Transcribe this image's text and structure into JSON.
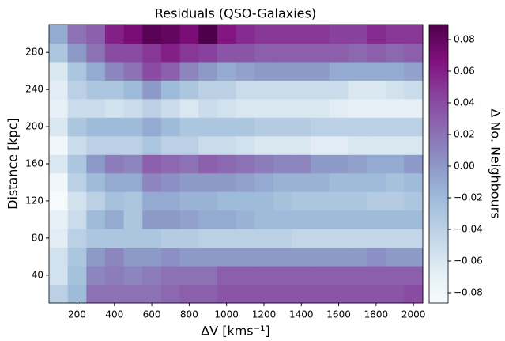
{
  "chart_data": {
    "type": "heatmap",
    "title": "Residuals (QSO-Galaxies)",
    "xlabel": "ΔV [kms⁻¹]",
    "ylabel": "Distance [kpc]",
    "colorbar_label": "Δ No. Neighbours",
    "x": [
      100,
      200,
      300,
      400,
      500,
      600,
      700,
      800,
      900,
      1000,
      1100,
      1200,
      1300,
      1400,
      1500,
      1600,
      1700,
      1800,
      1900,
      2000
    ],
    "y": [
      20,
      40,
      60,
      80,
      100,
      120,
      140,
      160,
      180,
      200,
      220,
      240,
      260,
      280,
      300
    ],
    "values": [
      [
        -0.04,
        -0.02,
        0.02,
        0.02,
        0.02,
        0.02,
        0.025,
        0.03,
        0.03,
        0.035,
        0.035,
        0.035,
        0.035,
        0.035,
        0.035,
        0.035,
        0.035,
        0.035,
        0.035,
        0.04
      ],
      [
        -0.055,
        -0.025,
        0.01,
        0.015,
        0.01,
        0.015,
        0.02,
        0.02,
        0.02,
        0.03,
        0.03,
        0.03,
        0.03,
        0.03,
        0.03,
        0.03,
        0.03,
        0.03,
        0.03,
        0.03
      ],
      [
        -0.055,
        -0.03,
        0.0,
        0.01,
        0.0,
        0.0,
        0.005,
        0.0,
        0.0,
        0.0,
        0.0,
        0.0,
        0.0,
        0.0,
        0.0,
        0.0,
        0.0,
        0.005,
        0.0,
        0.0
      ],
      [
        -0.065,
        -0.04,
        -0.03,
        -0.03,
        -0.03,
        -0.03,
        -0.035,
        -0.035,
        -0.04,
        -0.04,
        -0.04,
        -0.04,
        -0.04,
        -0.045,
        -0.045,
        -0.045,
        -0.045,
        -0.045,
        -0.045,
        -0.045
      ],
      [
        -0.07,
        -0.05,
        -0.02,
        -0.01,
        -0.03,
        0.0,
        0.0,
        -0.005,
        -0.01,
        -0.01,
        -0.015,
        -0.02,
        -0.02,
        -0.02,
        -0.02,
        -0.02,
        -0.02,
        -0.02,
        -0.02,
        -0.02
      ],
      [
        -0.085,
        -0.055,
        -0.04,
        -0.025,
        -0.03,
        -0.01,
        -0.01,
        -0.015,
        -0.015,
        -0.02,
        -0.02,
        -0.02,
        -0.025,
        -0.03,
        -0.03,
        -0.03,
        -0.03,
        -0.035,
        -0.035,
        -0.03
      ],
      [
        -0.08,
        -0.04,
        -0.02,
        -0.01,
        -0.01,
        0.01,
        0.005,
        0.0,
        0.0,
        0.0,
        -0.005,
        -0.01,
        -0.015,
        -0.015,
        -0.015,
        -0.02,
        -0.02,
        -0.02,
        -0.025,
        -0.02
      ],
      [
        -0.06,
        -0.03,
        0.0,
        0.015,
        0.01,
        0.03,
        0.025,
        0.02,
        0.03,
        0.025,
        0.02,
        0.015,
        0.01,
        0.01,
        0.0,
        0.0,
        -0.005,
        -0.01,
        -0.01,
        0.0
      ],
      [
        -0.08,
        -0.05,
        -0.04,
        -0.04,
        -0.04,
        -0.03,
        -0.04,
        -0.04,
        -0.05,
        -0.05,
        -0.055,
        -0.06,
        -0.06,
        -0.06,
        -0.065,
        -0.065,
        -0.06,
        -0.06,
        -0.06,
        -0.06
      ],
      [
        -0.06,
        -0.03,
        -0.02,
        -0.02,
        -0.02,
        -0.01,
        -0.02,
        -0.03,
        -0.03,
        -0.03,
        -0.03,
        -0.035,
        -0.035,
        -0.035,
        -0.04,
        -0.04,
        -0.04,
        -0.04,
        -0.04,
        -0.04
      ],
      [
        -0.07,
        -0.05,
        -0.05,
        -0.055,
        -0.05,
        -0.04,
        -0.05,
        -0.06,
        -0.05,
        -0.055,
        -0.06,
        -0.06,
        -0.06,
        -0.06,
        -0.06,
        -0.065,
        -0.07,
        -0.07,
        -0.07,
        -0.07
      ],
      [
        -0.065,
        -0.04,
        -0.03,
        -0.03,
        -0.02,
        0.0,
        -0.02,
        -0.03,
        -0.04,
        -0.04,
        -0.05,
        -0.05,
        -0.05,
        -0.05,
        -0.05,
        -0.05,
        -0.06,
        -0.06,
        -0.055,
        -0.05
      ],
      [
        -0.06,
        -0.03,
        -0.01,
        0.01,
        0.02,
        0.04,
        0.03,
        0.01,
        0.0,
        -0.01,
        -0.005,
        0.0,
        0.0,
        0.0,
        0.0,
        -0.01,
        -0.01,
        -0.01,
        -0.01,
        -0.005
      ],
      [
        -0.03,
        0.0,
        0.02,
        0.04,
        0.04,
        0.05,
        0.06,
        0.05,
        0.045,
        0.035,
        0.035,
        0.03,
        0.03,
        0.03,
        0.03,
        0.03,
        0.025,
        0.03,
        0.025,
        0.03
      ],
      [
        -0.01,
        0.02,
        0.03,
        0.06,
        0.07,
        0.085,
        0.08,
        0.07,
        0.09,
        0.065,
        0.055,
        0.05,
        0.05,
        0.05,
        0.05,
        0.045,
        0.045,
        0.055,
        0.05,
        0.05
      ]
    ],
    "xlim": [
      50,
      2050
    ],
    "ylim": [
      10,
      310
    ],
    "xticks": [
      200,
      400,
      600,
      800,
      1000,
      1200,
      1400,
      1600,
      1800,
      2000
    ],
    "yticks": [
      40,
      80,
      120,
      160,
      200,
      240,
      280
    ],
    "clim": [
      -0.0865,
      0.0895
    ],
    "cticks": [
      {
        "value": -0.08,
        "label": "−0.08"
      },
      {
        "value": -0.06,
        "label": "−0.06"
      },
      {
        "value": -0.04,
        "label": "−0.04"
      },
      {
        "value": -0.02,
        "label": "−0.02"
      },
      {
        "value": 0,
        "label": "0.00"
      },
      0.02,
      0.04,
      0.06,
      0.08
    ],
    "colormap": [
      "#f7fcfd",
      "#e0ecf4",
      "#bfd3e6",
      "#9ebcda",
      "#8c96c6",
      "#8c6bb1",
      "#88419d",
      "#810f7c",
      "#4d004b"
    ]
  }
}
